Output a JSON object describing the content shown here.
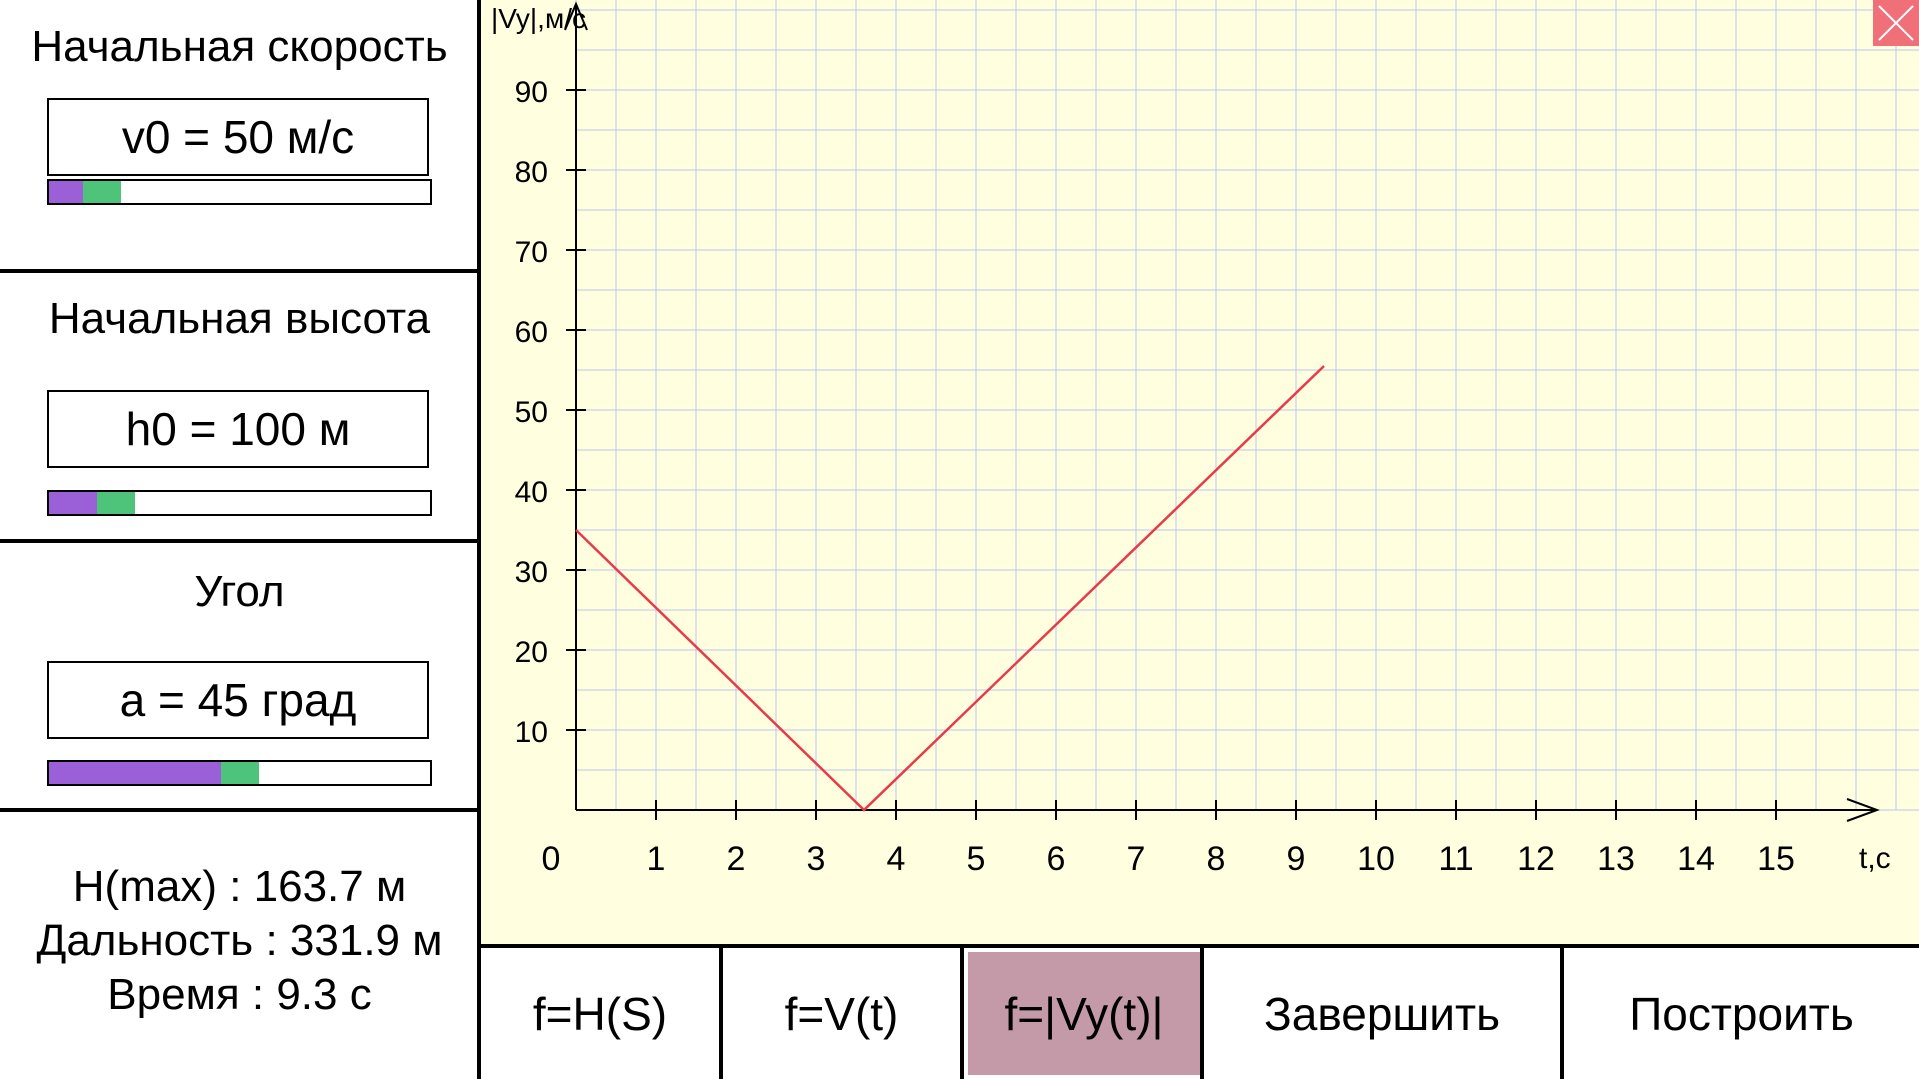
{
  "params": [
    {
      "title": "Начальная скорость",
      "value": "v0 = 50 м/с",
      "slider_fraction": 0.1
    },
    {
      "title": "Начальная высота",
      "value": "h0 = 100 м",
      "slider_fraction": 0.14
    },
    {
      "title": "Угол",
      "value": "a = 45 град",
      "slider_fraction": 0.5
    }
  ],
  "results": {
    "hmax": "H(max) : 163.7 м",
    "range": "Дальность : 331.9 м",
    "time": "Время : 9.3 с"
  },
  "buttons": {
    "hs": "f=H(S)",
    "vt": "f=V(t)",
    "vyt": "f=|Vy(t)|",
    "finish": "Завершить",
    "build": "Построить"
  },
  "colors": {
    "plot_bg": "#ffffe0",
    "grid": "#b8c4f0",
    "line": "#e83a4a",
    "slider_fill": "#9b5fd8",
    "slider_thumb": "#4dc47a",
    "active_button": "#c49aa8",
    "close_button": "#f0707a"
  },
  "icons": {
    "close": "close-icon"
  },
  "chart_data": {
    "type": "line",
    "ylabel": "|Vy|,м/с",
    "xlabel": "t,c",
    "origin_label": "0",
    "xlim": [
      0,
      16
    ],
    "ylim": [
      0,
      100
    ],
    "x_ticks": [
      1,
      2,
      3,
      4,
      5,
      6,
      7,
      8,
      9,
      10,
      11,
      12,
      13,
      14,
      15
    ],
    "y_ticks": [
      10,
      20,
      30,
      40,
      50,
      60,
      70,
      80,
      90
    ],
    "grid": true,
    "series": [
      {
        "x": [
          0,
          3.6,
          9.35
        ],
        "values": [
          35,
          0,
          55.5
        ]
      }
    ]
  }
}
